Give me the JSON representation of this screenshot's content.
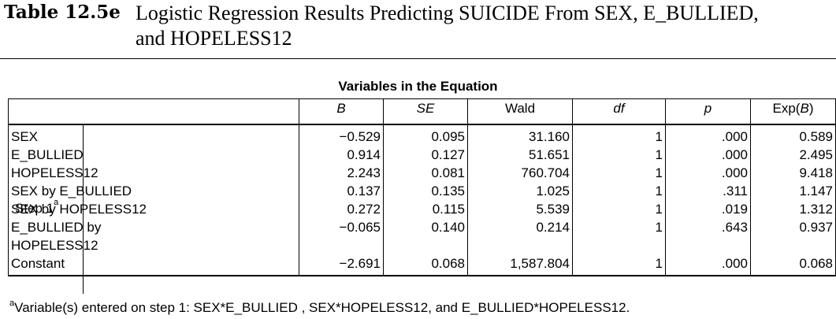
{
  "caption": {
    "label": "Table 12.5e",
    "title_line1": "Logistic Regression Results Predicting SUICIDE From SEX, E_BULLIED,",
    "title_line2": "and HOPELESS12"
  },
  "table": {
    "title": "Variables in the Equation",
    "columns": [
      "B",
      "SE",
      "Wald",
      "df",
      "p",
      "Exp(B)"
    ],
    "step_label": "Step 1",
    "step_superscript": "a",
    "rows": [
      {
        "variable": "SEX",
        "B": "−0.529",
        "SE": "0.095",
        "Wald": "31.160",
        "df": "1",
        "p": ".000",
        "ExpB": "0.589"
      },
      {
        "variable": "E_BULLIED",
        "B": "0.914",
        "SE": "0.127",
        "Wald": "51.651",
        "df": "1",
        "p": ".000",
        "ExpB": "2.495"
      },
      {
        "variable": "HOPELESS12",
        "B": "2.243",
        "SE": "0.081",
        "Wald": "760.704",
        "df": "1",
        "p": ".000",
        "ExpB": "9.418"
      },
      {
        "variable": "SEX by E_BULLIED",
        "B": "0.137",
        "SE": "0.135",
        "Wald": "1.025",
        "df": "1",
        "p": ".311",
        "ExpB": "1.147"
      },
      {
        "variable": "SEX by HOPELESS12",
        "B": "0.272",
        "SE": "0.115",
        "Wald": "5.539",
        "df": "1",
        "p": ".019",
        "ExpB": "1.312"
      },
      {
        "variable_line1": "E_BULLIED by",
        "variable_line2": "HOPELESS12",
        "B": "−0.065",
        "SE": "0.140",
        "Wald": "0.214",
        "df": "1",
        "p": ".643",
        "ExpB": "0.937"
      },
      {
        "variable": "Constant",
        "B": "−2.691",
        "SE": "0.068",
        "Wald": "1,587.804",
        "df": "1",
        "p": ".000",
        "ExpB": "0.068"
      }
    ]
  },
  "footnote": {
    "marker": "a",
    "text": "Variable(s) entered on step 1: SEX*E_BULLIED , SEX*HOPELESS12, and E_BULLIED*HOPELESS12."
  }
}
